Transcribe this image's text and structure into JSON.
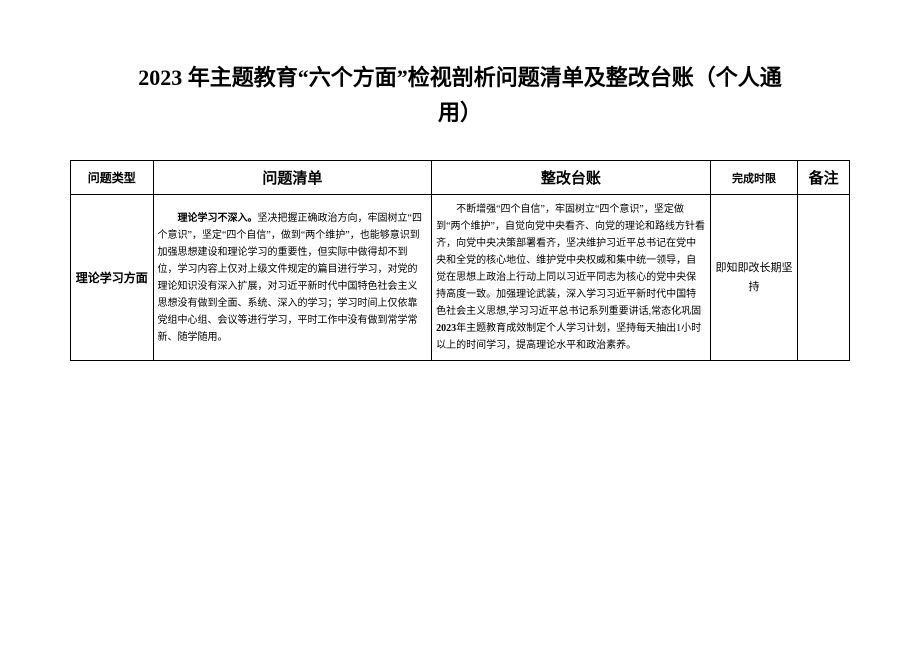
{
  "title": {
    "line1": "2023 年主题教育“六个方面”检视剖析问题清单及整改台账（个人通",
    "line2": "用）"
  },
  "table": {
    "headers": {
      "type": "问题类型",
      "problem": "问题清单",
      "rectify": "整改台账",
      "deadline": "完成时限",
      "remark": "备注"
    },
    "row": {
      "type": "理论学习方面",
      "problem_prefix": "理论学习不深入。",
      "problem_body": "坚决把握正确政治方向，牢固树立“四个意识”，坚定“四个自信”，做到“两个维护”，也能够意识到加强思想建设和理论学习的重要性，但实际中做得却不到位，学习内容上仅对上级文件规定的篇目进行学习，对党的理论知识没有深入扩展，对习近平新时代中国特色社会主义思想没有做到全面、系统、深入的学习；学习时间上仅依靠党组中心组、会议等进行学习，平时工作中没有做到常学常新、随学随用。",
      "rectify_indent": "　　",
      "rectify_part1": "不断增强“四个自信”，牢固树立“四个意识”，坚定做到“两个维护”，自觉向党中央看齐、向党的理论和路线方针看齐，向党中央决策部署看齐，坚决维护习近平总书记在党中央和全党的核心地位、维护党中央权威和集中统一领导，自觉在思想上政治上行动上同以习近平同志为核心的党中央保持高度一致。加强理论武装，深入学习习近平新时代中国特色社会主义思想,学习习近平总书记系列重要讲话,常态化巩固",
      "rectify_year": "2023",
      "rectify_part2": "年主题教育成效制定个人学习计划，坚持每天抽出1小时以上的时间学习，提高理论水平和政治素养。",
      "deadline": "即知即改长期坚持",
      "remark": ""
    }
  },
  "colors": {
    "background": "#ffffff",
    "border": "#000000",
    "text": "#000000"
  }
}
